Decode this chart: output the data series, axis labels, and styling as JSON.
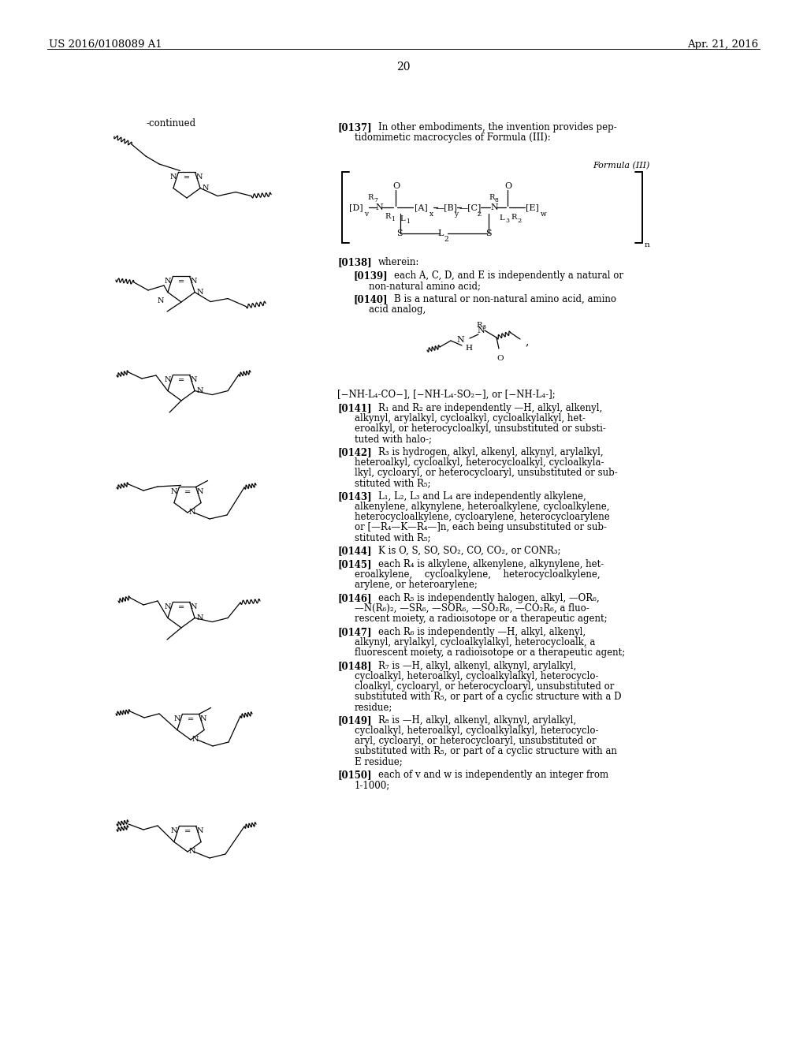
{
  "page_number": "20",
  "header_left": "US 2016/0108089 A1",
  "header_right": "Apr. 21, 2016",
  "background_color": "#ffffff"
}
